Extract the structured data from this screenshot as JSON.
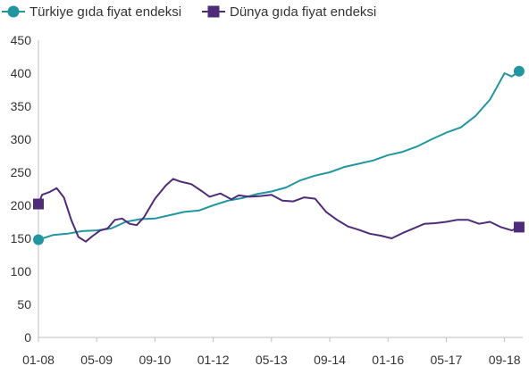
{
  "chart_data": {
    "type": "line",
    "title": "",
    "xlabel": "",
    "ylabel": "",
    "ylim": [
      0,
      450
    ],
    "yticks": [
      0,
      50,
      100,
      150,
      200,
      250,
      300,
      350,
      400,
      450
    ],
    "xticks": [
      "01-08",
      "05-09",
      "09-10",
      "01-12",
      "05-13",
      "09-14",
      "01-16",
      "05-17",
      "09-18"
    ],
    "xlim": [
      "2008-01",
      "2019-02"
    ],
    "grid": false,
    "legend_position": "top-left",
    "series": [
      {
        "name": "Türkiye gıda fiyat endeksi",
        "color": "#2196a0",
        "marker": "circle",
        "points": [
          [
            "2008-01",
            148
          ],
          [
            "2008-05",
            155
          ],
          [
            "2008-09",
            157
          ],
          [
            "2009-01",
            161
          ],
          [
            "2009-05",
            162
          ],
          [
            "2009-09",
            165
          ],
          [
            "2010-01",
            175
          ],
          [
            "2010-05",
            179
          ],
          [
            "2010-09",
            180
          ],
          [
            "2011-01",
            185
          ],
          [
            "2011-05",
            190
          ],
          [
            "2011-09",
            192
          ],
          [
            "2012-01",
            200
          ],
          [
            "2012-05",
            207
          ],
          [
            "2012-09",
            211
          ],
          [
            "2013-01",
            217
          ],
          [
            "2013-05",
            221
          ],
          [
            "2013-09",
            227
          ],
          [
            "2014-01",
            238
          ],
          [
            "2014-05",
            245
          ],
          [
            "2014-09",
            250
          ],
          [
            "2015-01",
            258
          ],
          [
            "2015-05",
            263
          ],
          [
            "2015-09",
            268
          ],
          [
            "2016-01",
            276
          ],
          [
            "2016-05",
            281
          ],
          [
            "2016-09",
            289
          ],
          [
            "2017-01",
            300
          ],
          [
            "2017-05",
            310
          ],
          [
            "2017-09",
            318
          ],
          [
            "2018-01",
            335
          ],
          [
            "2018-05",
            360
          ],
          [
            "2018-07",
            380
          ],
          [
            "2018-09",
            400
          ],
          [
            "2018-11",
            395
          ],
          [
            "2019-01",
            403
          ]
        ]
      },
      {
        "name": "Dünya gıda fiyat endeksi",
        "color": "#4e2c7a",
        "marker": "square",
        "points": [
          [
            "2008-01",
            202
          ],
          [
            "2008-02",
            216
          ],
          [
            "2008-04",
            220
          ],
          [
            "2008-06",
            226
          ],
          [
            "2008-08",
            212
          ],
          [
            "2008-10",
            178
          ],
          [
            "2008-12",
            152
          ],
          [
            "2009-02",
            145
          ],
          [
            "2009-04",
            154
          ],
          [
            "2009-06",
            162
          ],
          [
            "2009-08",
            165
          ],
          [
            "2009-10",
            178
          ],
          [
            "2009-12",
            180
          ],
          [
            "2010-02",
            172
          ],
          [
            "2010-04",
            170
          ],
          [
            "2010-06",
            182
          ],
          [
            "2010-09",
            210
          ],
          [
            "2010-12",
            230
          ],
          [
            "2011-02",
            240
          ],
          [
            "2011-04",
            236
          ],
          [
            "2011-07",
            232
          ],
          [
            "2011-10",
            221
          ],
          [
            "2011-12",
            213
          ],
          [
            "2012-03",
            218
          ],
          [
            "2012-06",
            209
          ],
          [
            "2012-08",
            215
          ],
          [
            "2012-11",
            213
          ],
          [
            "2013-02",
            214
          ],
          [
            "2013-05",
            216
          ],
          [
            "2013-08",
            207
          ],
          [
            "2013-11",
            206
          ],
          [
            "2014-02",
            212
          ],
          [
            "2014-05",
            210
          ],
          [
            "2014-08",
            190
          ],
          [
            "2014-11",
            178
          ],
          [
            "2015-02",
            168
          ],
          [
            "2015-05",
            163
          ],
          [
            "2015-08",
            157
          ],
          [
            "2015-11",
            154
          ],
          [
            "2016-02",
            150
          ],
          [
            "2016-05",
            158
          ],
          [
            "2016-08",
            165
          ],
          [
            "2016-11",
            172
          ],
          [
            "2017-02",
            173
          ],
          [
            "2017-05",
            175
          ],
          [
            "2017-08",
            178
          ],
          [
            "2017-11",
            178
          ],
          [
            "2018-02",
            172
          ],
          [
            "2018-05",
            175
          ],
          [
            "2018-08",
            167
          ],
          [
            "2018-11",
            162
          ],
          [
            "2019-01",
            167
          ]
        ]
      }
    ]
  }
}
